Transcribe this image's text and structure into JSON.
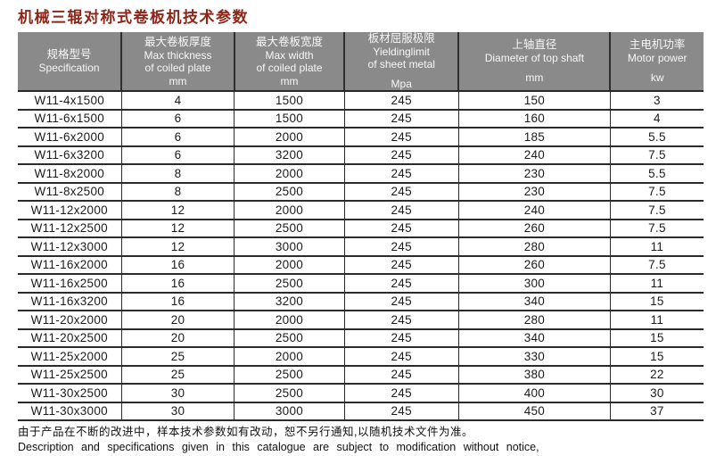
{
  "title": "机械三辊对称式卷板机技术参数",
  "colors": {
    "title_text": "#8d2518",
    "header_bg": "#8a8a8a",
    "header_text": "#f7f7f7",
    "grid_line": "#2b2b2b",
    "body_text": "#1b1b1b"
  },
  "table": {
    "columns": [
      {
        "id": "spec",
        "zh": "规格型号",
        "en_lines": [
          "Specification"
        ],
        "unit": ""
      },
      {
        "id": "max-thickness",
        "zh": "最大卷板厚度",
        "en_lines": [
          "Max thickness",
          "of coiled plate"
        ],
        "unit": "mm"
      },
      {
        "id": "max-width",
        "zh": "最大卷板宽度",
        "en_lines": [
          "Max width",
          "of coiled plate"
        ],
        "unit": "mm"
      },
      {
        "id": "yield-limit",
        "zh": "板材屈服极限",
        "en_lines": [
          "Yieldinglimit",
          "of sheet metal"
        ],
        "unit": "Mpa"
      },
      {
        "id": "shaft-diameter",
        "zh": "上轴直径",
        "en_lines": [
          "Diameter of top shaft"
        ],
        "unit": "mm"
      },
      {
        "id": "motor-power",
        "zh": "主电机功率",
        "en_lines": [
          "Motor power"
        ],
        "unit": "kw"
      }
    ],
    "rows": [
      [
        "W11-4x1500",
        "4",
        "1500",
        "245",
        "150",
        "3"
      ],
      [
        "W11-6x1500",
        "6",
        "1500",
        "245",
        "160",
        "4"
      ],
      [
        "W11-6x2000",
        "6",
        "2000",
        "245",
        "185",
        "5.5"
      ],
      [
        "W11-6x3200",
        "6",
        "3200",
        "245",
        "240",
        "7.5"
      ],
      [
        "W11-8x2000",
        "8",
        "2000",
        "245",
        "230",
        "5.5"
      ],
      [
        "W11-8x2500",
        "8",
        "2500",
        "245",
        "230",
        "7.5"
      ],
      [
        "W11-12x2000",
        "12",
        "2000",
        "245",
        "240",
        "7.5"
      ],
      [
        "W11-12x2500",
        "12",
        "2500",
        "245",
        "260",
        "7.5"
      ],
      [
        "W11-12x3000",
        "12",
        "3000",
        "245",
        "280",
        "11"
      ],
      [
        "W11-16x2000",
        "16",
        "2000",
        "245",
        "260",
        "7.5"
      ],
      [
        "W11-16x2500",
        "16",
        "2500",
        "245",
        "300",
        "11"
      ],
      [
        "W11-16x3200",
        "16",
        "3200",
        "245",
        "340",
        "15"
      ],
      [
        "W11-20x2000",
        "20",
        "2000",
        "245",
        "280",
        "11"
      ],
      [
        "W11-20x2500",
        "20",
        "2500",
        "245",
        "340",
        "15"
      ],
      [
        "W11-25x2000",
        "25",
        "2000",
        "245",
        "330",
        "15"
      ],
      [
        "W11-25x2500",
        "25",
        "2500",
        "245",
        "380",
        "22"
      ],
      [
        "W11-30x2500",
        "30",
        "2500",
        "245",
        "400",
        "30"
      ],
      [
        "W11-30x3000",
        "30",
        "3000",
        "245",
        "450",
        "37"
      ]
    ]
  },
  "footer": {
    "zh": "由于产品在不断的改进中，样本技术参数如有改动，恕不另行通知,以随机技术文件为准。",
    "en": "Description and specifications given in this catalogue are subject to modification without notice,"
  }
}
